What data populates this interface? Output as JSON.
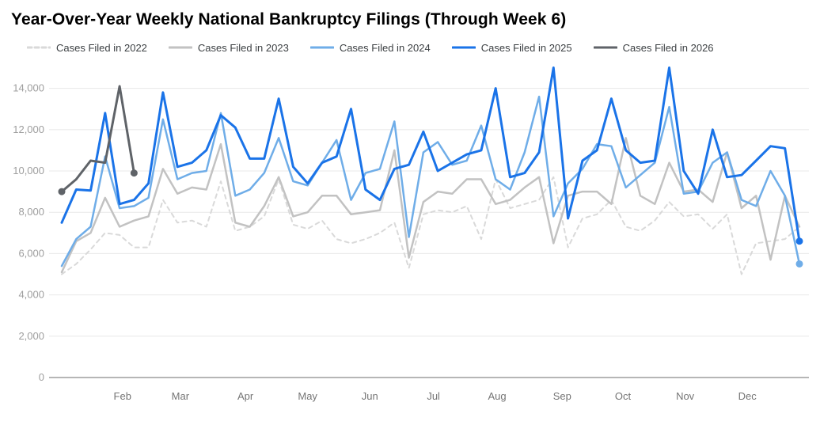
{
  "chart_data": {
    "type": "line",
    "title": "Year-Over-Year Weekly National Bankruptcy Filings (Through Week 6)",
    "legend_position": "top",
    "grid": "horizontal",
    "background_color": "#ffffff",
    "x_axis": {
      "unit": "week",
      "weeks_per_year": 52,
      "month_labels": [
        {
          "label": "Feb",
          "week": 5.2
        },
        {
          "label": "Mar",
          "week": 9.2
        },
        {
          "label": "Apr",
          "week": 13.7
        },
        {
          "label": "May",
          "week": 18.0
        },
        {
          "label": "Jun",
          "week": 22.3
        },
        {
          "label": "Jul",
          "week": 26.7
        },
        {
          "label": "Aug",
          "week": 31.1
        },
        {
          "label": "Sep",
          "week": 35.6
        },
        {
          "label": "Oct",
          "week": 39.8
        },
        {
          "label": "Nov",
          "week": 44.1
        },
        {
          "label": "Dec",
          "week": 48.4
        }
      ]
    },
    "y_axis": {
      "min": 0,
      "max": 14000,
      "plot_max": 15250,
      "ticks": [
        {
          "value": 0,
          "label": "0"
        },
        {
          "value": 2000,
          "label": "2,000"
        },
        {
          "value": 4000,
          "label": "4,000"
        },
        {
          "value": 6000,
          "label": "6,000"
        },
        {
          "value": 8000,
          "label": "8,000"
        },
        {
          "value": 10000,
          "label": "10,000"
        },
        {
          "value": 12000,
          "label": "12,000"
        },
        {
          "value": 14000,
          "label": "14,000"
        }
      ]
    },
    "series": [
      {
        "name": "Cases Filed in 2022",
        "year": 2022,
        "color": "#d9d9d9",
        "dash": "5 5",
        "width": 2,
        "start_dot": false,
        "end_dot": false,
        "values": [
          5000,
          5500,
          6200,
          7000,
          6900,
          6300,
          6300,
          8600,
          7500,
          7600,
          7300,
          9500,
          7100,
          7300,
          7800,
          9600,
          7400,
          7200,
          7600,
          6700,
          6500,
          6700,
          7000,
          7500,
          5300,
          7900,
          8100,
          8000,
          8300,
          6700,
          9600,
          8200,
          8400,
          8600,
          9700,
          6300,
          7700,
          7900,
          8600,
          7300,
          7100,
          7600,
          8500,
          7800,
          7900,
          7200,
          7900,
          5000,
          6500,
          6600,
          6700,
          7300
        ]
      },
      {
        "name": "Cases Filed in 2023",
        "year": 2023,
        "color": "#c2c2c2",
        "dash": "",
        "width": 2.5,
        "start_dot": false,
        "end_dot": false,
        "values": [
          5100,
          6600,
          7000,
          8700,
          7300,
          7600,
          7800,
          10100,
          8900,
          9200,
          9100,
          11300,
          7500,
          7300,
          8300,
          9700,
          7800,
          8000,
          8800,
          8800,
          7900,
          8000,
          8100,
          11000,
          5800,
          8500,
          9000,
          8900,
          9600,
          9600,
          8400,
          8600,
          9200,
          9700,
          6500,
          8800,
          9000,
          9000,
          8400,
          11600,
          8800,
          8400,
          10400,
          9000,
          9100,
          8500,
          10900,
          8200,
          8800,
          5700,
          8800,
          7300
        ]
      },
      {
        "name": "Cases Filed in 2024",
        "year": 2024,
        "color": "#6fade8",
        "dash": "",
        "width": 2.5,
        "start_dot": false,
        "end_dot": true,
        "values": [
          5400,
          6700,
          7300,
          10700,
          8200,
          8300,
          8700,
          12500,
          9600,
          9900,
          10000,
          12800,
          8800,
          9100,
          9900,
          11600,
          9500,
          9300,
          10400,
          11500,
          8600,
          9900,
          10100,
          12400,
          6800,
          10900,
          11400,
          10300,
          10500,
          12200,
          9600,
          9100,
          10900,
          13600,
          7800,
          9400,
          10100,
          11300,
          11200,
          9200,
          9800,
          10400,
          13100,
          8900,
          9000,
          10400,
          10900,
          8600,
          8300,
          10000,
          8800,
          5500
        ]
      },
      {
        "name": "Cases Filed in 2025",
        "year": 2025,
        "color": "#1a73e8",
        "dash": "",
        "width": 3,
        "start_dot": false,
        "end_dot": true,
        "values": [
          7500,
          9100,
          9050,
          12800,
          8400,
          8600,
          9400,
          13800,
          10200,
          10400,
          11000,
          12700,
          12100,
          10600,
          10600,
          13500,
          10200,
          9400,
          10400,
          10700,
          13000,
          9100,
          8600,
          10100,
          10300,
          11900,
          10000,
          10400,
          10800,
          11000,
          14000,
          9700,
          9900,
          10900,
          15000,
          7700,
          10500,
          11000,
          13500,
          11000,
          10400,
          10500,
          15000,
          10000,
          8900,
          12000,
          9700,
          9800,
          10500,
          11200,
          11100,
          6600
        ]
      },
      {
        "name": "Cases Filed in 2026",
        "year": 2026,
        "color": "#5f6368",
        "dash": "",
        "width": 3,
        "start_dot": true,
        "end_dot": true,
        "values": [
          9000,
          9600,
          10500,
          10400,
          14100,
          9900
        ]
      }
    ]
  }
}
